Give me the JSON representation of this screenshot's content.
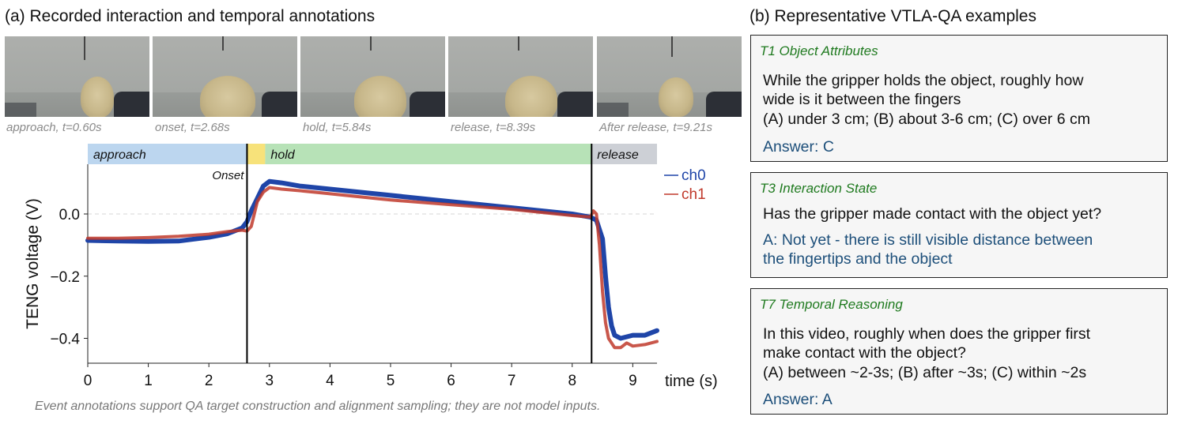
{
  "panel_a": {
    "title": "(a) Recorded interaction and temporal annotations",
    "frames": [
      {
        "caption": "approach, t=0.60s"
      },
      {
        "caption": "onset, t=2.68s"
      },
      {
        "caption": "hold, t=5.84s"
      },
      {
        "caption": "release, t=8.39s"
      },
      {
        "caption": "After release, t=9.21s"
      }
    ],
    "footnote": "Event annotations support QA target construction and alignment sampling; they are not model inputs."
  },
  "panel_b": {
    "title": "(b) Representative VTLA-QA examples",
    "examples": [
      {
        "header": "T1 Object Attributes",
        "question_lines": [
          "While the gripper holds the object, roughly how",
          "wide is it between the fingers",
          "(A) under 3 cm; (B) about 3-6 cm; (C) over 6 cm"
        ],
        "answer_lines": [
          "Answer: C"
        ]
      },
      {
        "header": "T3 Interaction State",
        "question_lines": [
          "Has the gripper made contact with the object yet?"
        ],
        "answer_lines": [
          "A: Not yet - there is still visible distance between",
          "the fingertips and the object"
        ]
      },
      {
        "header": "T7 Temporal Reasoning",
        "question_lines": [
          "In this video, roughly when does the gripper first",
          "make contact with the object?",
          "(A) between ~2-3s; (B) after ~3s; (C) within ~2s"
        ],
        "answer_lines": [
          "Answer: A"
        ]
      }
    ]
  },
  "chart_data": {
    "type": "line",
    "xlabel": "time (s)",
    "ylabel": "TENG voltage (V)",
    "xlim": [
      0,
      9.4
    ],
    "ylim": [
      -0.48,
      0.16
    ],
    "xticks": [
      0,
      1,
      2,
      3,
      4,
      5,
      6,
      7,
      8,
      9
    ],
    "yticks": [
      0.0,
      -0.2,
      -0.4
    ],
    "ytick_labels": [
      "0.0",
      "−0.2",
      "−0.4"
    ],
    "zero_line": "dashed",
    "legend": "top-right",
    "phases": [
      {
        "label": "approach",
        "start": 0.0,
        "end": 2.63,
        "color": "#bcd6ef"
      },
      {
        "label": "",
        "start": 2.63,
        "end": 2.93,
        "color": "#f7e27a"
      },
      {
        "label": "hold",
        "start": 2.93,
        "end": 8.32,
        "color": "#b7e2b7"
      },
      {
        "label": "release",
        "start": 8.32,
        "end": 9.4,
        "color": "#cdd0d6"
      }
    ],
    "event_lines": [
      {
        "label": "Onset",
        "x": 2.63
      },
      {
        "label": "",
        "x": 8.32
      }
    ],
    "series": [
      {
        "name": "ch0",
        "color": "#1f45a8",
        "x": [
          0,
          0.5,
          1.0,
          1.5,
          2.0,
          2.3,
          2.55,
          2.63,
          2.7,
          2.8,
          2.9,
          3.0,
          3.2,
          3.5,
          4.0,
          5.0,
          6.0,
          7.0,
          8.0,
          8.3,
          8.4,
          8.5,
          8.55,
          8.6,
          8.65,
          8.7,
          8.8,
          9.0,
          9.2,
          9.4
        ],
        "y": [
          -0.085,
          -0.087,
          -0.088,
          -0.087,
          -0.075,
          -0.064,
          -0.045,
          -0.025,
          0.01,
          0.05,
          0.09,
          0.105,
          0.1,
          0.09,
          0.08,
          0.06,
          0.04,
          0.02,
          0.0,
          -0.01,
          -0.02,
          -0.08,
          -0.2,
          -0.3,
          -0.36,
          -0.39,
          -0.4,
          -0.39,
          -0.39,
          -0.375
        ]
      },
      {
        "name": "ch1",
        "color": "#c0392b",
        "x": [
          0,
          0.5,
          1.0,
          1.5,
          2.0,
          2.3,
          2.55,
          2.63,
          2.7,
          2.8,
          2.9,
          3.0,
          3.2,
          3.5,
          4.0,
          5.0,
          6.0,
          7.0,
          8.0,
          8.3,
          8.35,
          8.4,
          8.45,
          8.5,
          8.55,
          8.6,
          8.7,
          8.8,
          8.9,
          9.0,
          9.2,
          9.4
        ],
        "y": [
          -0.078,
          -0.078,
          -0.076,
          -0.072,
          -0.065,
          -0.057,
          -0.052,
          -0.055,
          -0.04,
          0.04,
          0.07,
          0.085,
          0.08,
          0.075,
          0.065,
          0.045,
          0.03,
          0.015,
          -0.005,
          -0.01,
          0.01,
          0.0,
          -0.1,
          -0.25,
          -0.35,
          -0.4,
          -0.43,
          -0.43,
          -0.415,
          -0.425,
          -0.42,
          -0.41
        ]
      }
    ]
  }
}
